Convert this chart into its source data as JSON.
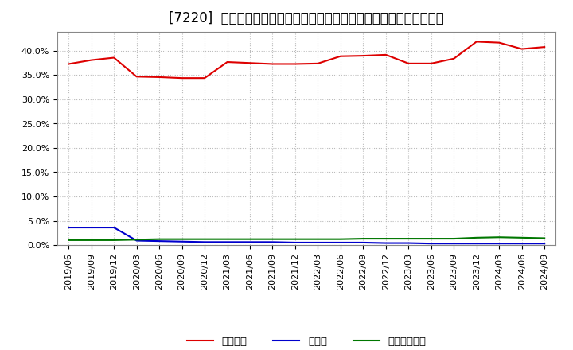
{
  "title": "[7220]  自己資本、のれん、繰延税金資産の総資産に対する比率の推移",
  "x_labels": [
    "2019/06",
    "2019/09",
    "2019/12",
    "2020/03",
    "2020/06",
    "2020/09",
    "2020/12",
    "2021/03",
    "2021/06",
    "2021/09",
    "2021/12",
    "2022/03",
    "2022/06",
    "2022/09",
    "2022/12",
    "2023/03",
    "2023/06",
    "2023/09",
    "2023/12",
    "2024/03",
    "2024/06",
    "2024/09"
  ],
  "jikoshihon": [
    0.373,
    0.381,
    0.386,
    0.347,
    0.346,
    0.344,
    0.344,
    0.377,
    0.375,
    0.373,
    0.373,
    0.374,
    0.389,
    0.39,
    0.392,
    0.374,
    0.374,
    0.384,
    0.419,
    0.417,
    0.404,
    0.408
  ],
  "noren": [
    0.036,
    0.036,
    0.036,
    0.009,
    0.008,
    0.007,
    0.006,
    0.006,
    0.006,
    0.006,
    0.005,
    0.005,
    0.005,
    0.005,
    0.004,
    0.004,
    0.003,
    0.003,
    0.003,
    0.003,
    0.003,
    0.003
  ],
  "kurinobe": [
    0.01,
    0.01,
    0.01,
    0.011,
    0.012,
    0.012,
    0.012,
    0.012,
    0.012,
    0.012,
    0.012,
    0.012,
    0.012,
    0.013,
    0.013,
    0.013,
    0.013,
    0.013,
    0.015,
    0.016,
    0.015,
    0.014
  ],
  "jikoshihon_color": "#dd0000",
  "noren_color": "#0000cc",
  "kurinobe_color": "#007700",
  "background_color": "#ffffff",
  "plot_bg_color": "#ffffff",
  "grid_color": "#bbbbbb",
  "ylim": [
    0.0,
    0.44
  ],
  "yticks": [
    0.0,
    0.05,
    0.1,
    0.15,
    0.2,
    0.25,
    0.3,
    0.35,
    0.4
  ],
  "legend_jikoshihon": "自己資本",
  "legend_noren": "のれん",
  "legend_kurinobe": "繰延税金資産",
  "title_fontsize": 12,
  "tick_fontsize": 8,
  "legend_fontsize": 9.5
}
